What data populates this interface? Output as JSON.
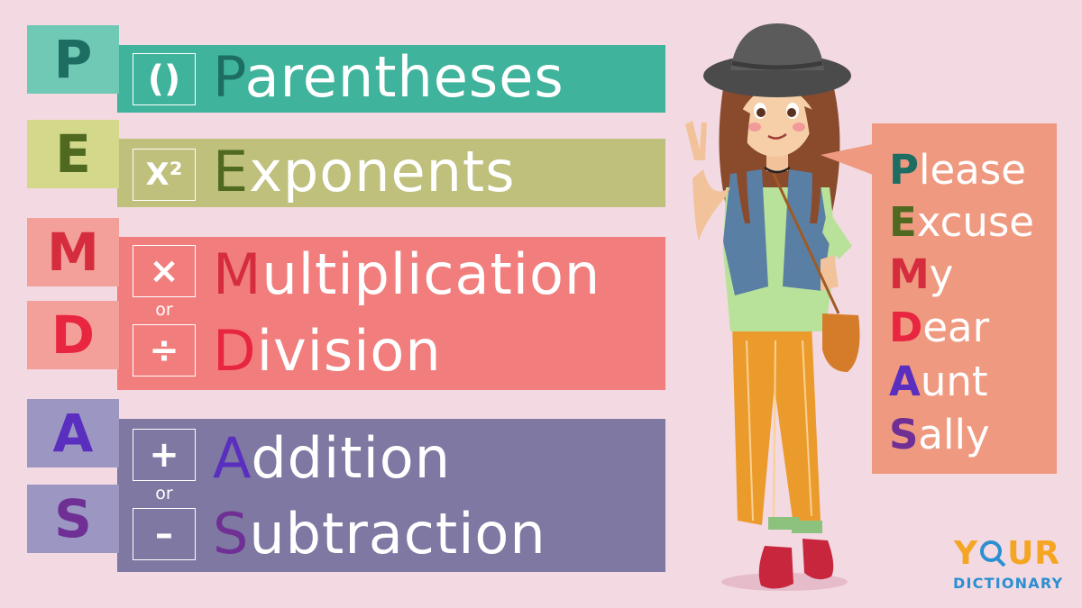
{
  "rows": {
    "p": {
      "letter": "P",
      "symbol": "()",
      "first": "P",
      "rest": "arentheses"
    },
    "e": {
      "letter": "E",
      "symbol": "X²",
      "first": "E",
      "rest": "xponents"
    },
    "m": {
      "letter": "M",
      "symbol": "×",
      "first": "M",
      "rest": "ultiplication"
    },
    "d": {
      "letter": "D",
      "symbol": "÷",
      "first": "D",
      "rest": "ivision"
    },
    "a": {
      "letter": "A",
      "symbol": "+",
      "first": "A",
      "rest": "ddition"
    },
    "s": {
      "letter": "S",
      "symbol": "–",
      "first": "S",
      "rest": "ubtraction"
    }
  },
  "or_md": "or",
  "or_as": "or",
  "mnemonic": [
    {
      "first": "P",
      "rest": "lease"
    },
    {
      "first": "E",
      "rest": "xcuse"
    },
    {
      "first": "M",
      "rest": "y"
    },
    {
      "first": "D",
      "rest": "ear"
    },
    {
      "first": "A",
      "rest": "unt"
    },
    {
      "first": "S",
      "rest": "ally"
    }
  ],
  "logo": {
    "top_a": "Y",
    "top_b": "UR",
    "bottom": "DICTIONARY"
  },
  "colors": {
    "background": "#f3d9e2",
    "p_band": "#3fb39b",
    "p_tab": "#6fc9b5",
    "p_letter": "#1d6d62",
    "e_band": "#bec07c",
    "e_tab": "#d4d88a",
    "e_letter": "#4f6a20",
    "md_band": "#f17e7d",
    "md_tab": "#f3a09a",
    "m_letter": "#d52d3d",
    "d_letter": "#e8263f",
    "as_band": "#7e78a2",
    "as_tab": "#9c97c2",
    "a_letter": "#5a2fbf",
    "s_letter": "#6f2f95",
    "callout": "#ef9a80"
  },
  "illustration": "girl-in-hat-peace-sign"
}
